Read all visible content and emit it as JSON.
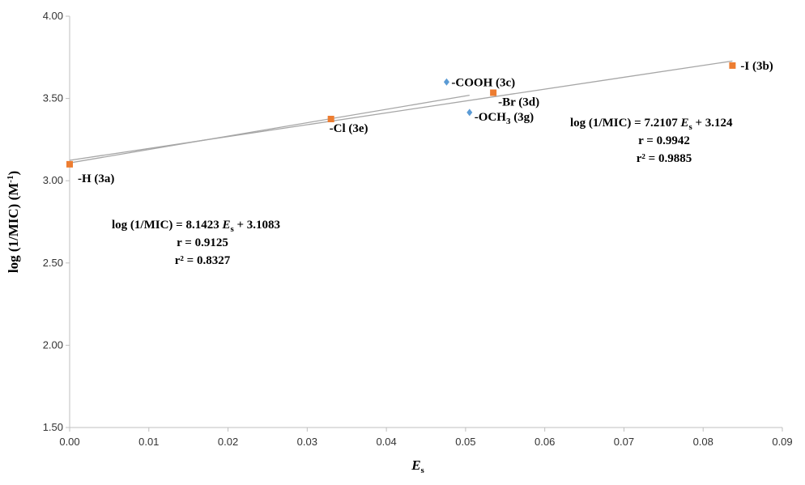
{
  "chart_data": {
    "type": "scatter",
    "xlabel": "E",
    "xlabel_sub": "s",
    "ylabel": "log (1/MIC) (M",
    "ylabel_sup": "-1",
    "ylabel_end": ")",
    "xlim": [
      0,
      0.09
    ],
    "ylim": [
      1.5,
      4.0
    ],
    "xticks": [
      "0.00",
      "0.01",
      "0.02",
      "0.03",
      "0.04",
      "0.05",
      "0.06",
      "0.07",
      "0.08",
      "0.09"
    ],
    "yticks": [
      "1.50",
      "2.00",
      "2.50",
      "3.00",
      "3.50",
      "4.00"
    ],
    "grid": false,
    "series": [
      {
        "marker": "square",
        "color": "#ED7D31",
        "points": [
          {
            "x": 0.0,
            "y": 3.1,
            "label": "-H (3a)"
          },
          {
            "x": 0.033,
            "y": 3.375,
            "label": "-Cl (3e)"
          },
          {
            "x": 0.0535,
            "y": 3.535,
            "label": "-Br (3d)"
          },
          {
            "x": 0.0837,
            "y": 3.7,
            "label": "-I (3b)"
          }
        ]
      },
      {
        "marker": "diamond",
        "color": "#5B9BD5",
        "points": [
          {
            "x": 0.0476,
            "y": 3.6,
            "label": "-COOH (3c)"
          },
          {
            "x": 0.0505,
            "y": 3.415,
            "label": "-OCH3 (3g)",
            "label_main": "-OCH",
            "label_sub": "3",
            "label_end": " (3g)"
          }
        ]
      }
    ],
    "trendlines": [
      {
        "slope": 7.2107,
        "intercept": 3.124,
        "x_range": [
          0,
          0.0837
        ],
        "color": "#a6a6a6"
      },
      {
        "slope": 8.1423,
        "intercept": 3.1083,
        "x_range": [
          0,
          0.0505
        ],
        "color": "#a6a6a6"
      }
    ],
    "annotations": [
      {
        "lines": [
          {
            "pre": "log (1/MIC) = 7.2107 ",
            "var": "E",
            "sub": "s",
            "post": " + 3.124"
          },
          {
            "text": "r = 0.9942"
          },
          {
            "text": "r² = 0.9885"
          }
        ]
      },
      {
        "lines": [
          {
            "pre": "log (1/MIC) = 8.1423 ",
            "var": "E",
            "sub": "s",
            "post": " + 3.1083"
          },
          {
            "text": "r = 0.9125"
          },
          {
            "text": "r² = 0.8327"
          }
        ]
      }
    ]
  }
}
